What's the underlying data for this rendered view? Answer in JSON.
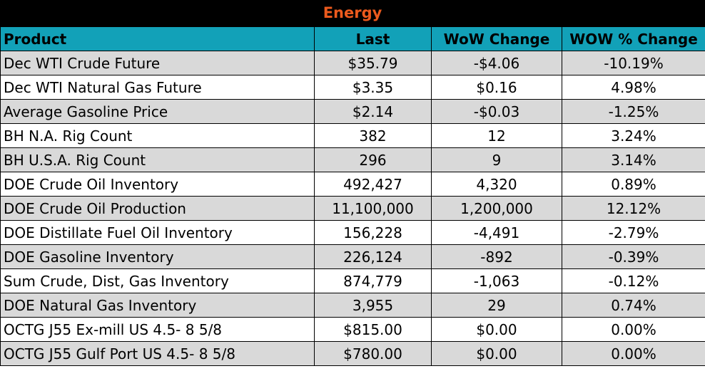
{
  "title": "Energy",
  "headers": [
    "Product",
    "Last",
    "WoW Change",
    "WOW % Change"
  ],
  "rows": [
    [
      "Dec WTI Crude Future",
      "$35.79",
      "-$4.06",
      "-10.19%"
    ],
    [
      "Dec WTI Natural Gas Future",
      "$3.35",
      "$0.16",
      "4.98%"
    ],
    [
      "Average Gasoline Price",
      "$2.14",
      "-$0.03",
      "-1.25%"
    ],
    [
      "BH N.A. Rig Count",
      "382",
      "12",
      "3.24%"
    ],
    [
      "BH U.S.A. Rig Count",
      "296",
      "9",
      "3.14%"
    ],
    [
      "DOE Crude Oil Inventory",
      "492,427",
      "4,320",
      "0.89%"
    ],
    [
      "DOE Crude Oil Production",
      "11,100,000",
      "1,200,000",
      "12.12%"
    ],
    [
      "DOE Distillate Fuel Oil Inventory",
      "156,228",
      "-4,491",
      "-2.79%"
    ],
    [
      "DOE Gasoline Inventory",
      "226,124",
      "-892",
      "-0.39%"
    ],
    [
      "Sum Crude, Dist, Gas Inventory",
      "874,779",
      "-1,063",
      "-0.12%"
    ],
    [
      "DOE Natural Gas Inventory",
      "3,955",
      "29",
      "0.74%"
    ],
    [
      "OCTG J55 Ex-mill US 4.5- 8 5/8",
      "$815.00",
      "$0.00",
      "0.00%"
    ],
    [
      "OCTG J55 Gulf Port US 4.5- 8 5/8",
      "$780.00",
      "$0.00",
      "0.00%"
    ]
  ],
  "colors": {
    "title_bg": "#000000",
    "title_text": "#ec5a1d",
    "header_bg": "#12a1b8",
    "row_alt_bg": "#d9d9d9",
    "row_plain_bg": "#ffffff"
  }
}
